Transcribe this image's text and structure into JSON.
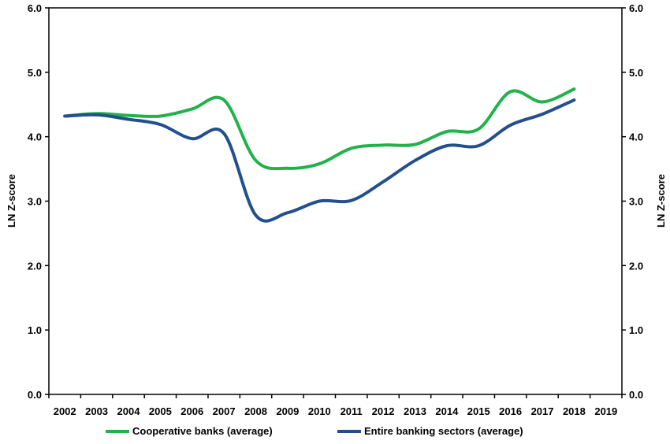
{
  "chart_data": {
    "type": "line",
    "title": "",
    "xlabel": "",
    "ylabel": "LN Z-score",
    "ylabel_right": "LN Z-score",
    "ylim": [
      0,
      6
    ],
    "y_ticks": [
      "0.0",
      "1.0",
      "2.0",
      "3.0",
      "4.0",
      "5.0",
      "6.0"
    ],
    "grid": false,
    "legend_position": "bottom",
    "categories": [
      "2002",
      "2003",
      "2004",
      "2005",
      "2006",
      "2007",
      "2008",
      "2009",
      "2010",
      "2011",
      "2012",
      "2013",
      "2014",
      "2015",
      "2016",
      "2017",
      "2018",
      "2019"
    ],
    "series": [
      {
        "name": "Cooperative banks (average)",
        "color": "#22b24c",
        "values": [
          4.32,
          4.36,
          4.33,
          4.32,
          4.43,
          4.57,
          3.63,
          3.51,
          3.58,
          3.82,
          3.87,
          3.88,
          4.08,
          4.12,
          4.7,
          4.54,
          4.74,
          null
        ]
      },
      {
        "name": "Entire banking sectors (average)",
        "color": "#234f8e",
        "values": [
          4.32,
          4.34,
          4.27,
          4.19,
          3.97,
          4.05,
          2.78,
          2.82,
          3.0,
          3.01,
          3.3,
          3.63,
          3.86,
          3.86,
          4.18,
          4.35,
          4.57,
          null
        ]
      }
    ]
  }
}
